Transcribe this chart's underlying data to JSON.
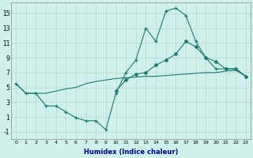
{
  "xlabel": "Humidex (Indice chaleur)",
  "bg_color": "#cff0eb",
  "grid_color": "#b8ddd8",
  "line_color": "#1a7a6e",
  "xlim": [
    -0.5,
    23.5
  ],
  "ylim": [
    -2,
    16.5
  ],
  "xticks": [
    0,
    1,
    2,
    3,
    4,
    5,
    6,
    7,
    8,
    9,
    10,
    11,
    12,
    13,
    14,
    15,
    16,
    17,
    18,
    19,
    20,
    21,
    22,
    23
  ],
  "yticks": [
    -1,
    1,
    3,
    5,
    7,
    9,
    11,
    13,
    15
  ],
  "line1_x": [
    0,
    1,
    2,
    3,
    4,
    5,
    6,
    7,
    8,
    9,
    10,
    11,
    12,
    13,
    14,
    15,
    16,
    17,
    18,
    19,
    20,
    21,
    22,
    23
  ],
  "line1_y": [
    5.5,
    4.2,
    4.2,
    2.5,
    2.5,
    1.7,
    0.9,
    0.5,
    0.5,
    -0.7,
    4.2,
    7.0,
    8.7,
    13.0,
    11.2,
    15.3,
    15.7,
    14.7,
    11.2,
    9.0,
    7.5,
    7.5,
    7.5,
    6.5
  ],
  "line2_x": [
    10,
    11,
    12,
    13,
    14,
    15,
    16,
    17,
    18,
    19,
    20,
    21,
    22,
    23
  ],
  "line2_y": [
    4.5,
    6.0,
    6.8,
    7.0,
    8.0,
    8.7,
    9.5,
    11.2,
    10.5,
    9.0,
    8.5,
    7.5,
    7.5,
    6.5
  ],
  "line3_x": [
    0,
    1,
    2,
    3,
    4,
    5,
    6,
    7,
    8,
    9,
    10,
    11,
    12,
    13,
    14,
    15,
    16,
    17,
    18,
    19,
    20,
    21,
    22,
    23
  ],
  "line3_y": [
    5.5,
    4.2,
    4.2,
    4.2,
    4.5,
    4.8,
    5.0,
    5.5,
    5.8,
    6.0,
    6.2,
    6.3,
    6.4,
    6.5,
    6.5,
    6.6,
    6.7,
    6.8,
    6.9,
    7.0,
    7.0,
    7.2,
    7.3,
    6.5
  ]
}
